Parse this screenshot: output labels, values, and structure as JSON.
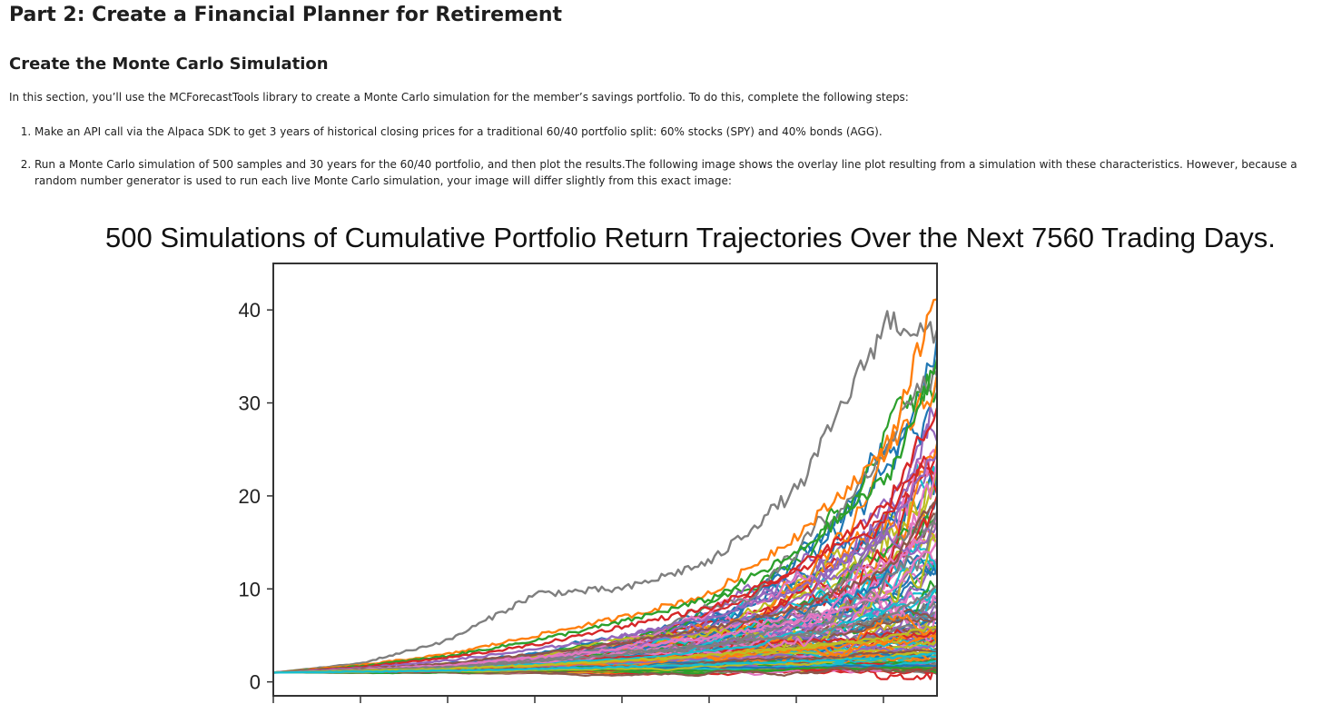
{
  "page": {
    "heading": "Part 2: Create a Financial Planner for Retirement",
    "subheading": "Create the Monte Carlo Simulation",
    "intro": "In this section, you’ll use the MCForecastTools library to create a Monte Carlo simulation for the member’s savings portfolio. To do this, complete the following steps:",
    "steps": [
      "Make an API call via the Alpaca SDK to get 3 years of historical closing prices for a traditional 60/40 portfolio split: 60% stocks (SPY) and 40% bonds (AGG).",
      "Run a Monte Carlo simulation of 500 samples and 30 years for the 60/40 portfolio, and then plot the results.The following image shows the overlay line plot resulting from a simulation with these characteristics. However, because a random number generator is used to run each live Monte Carlo simulation, your image will differ slightly from this exact image:"
    ]
  },
  "colors": {
    "series": [
      "#1f77b4",
      "#ff7f0e",
      "#2ca02c",
      "#d62728",
      "#9467bd",
      "#8c564b",
      "#e377c2",
      "#7f7f7f",
      "#bcbd22",
      "#17becf"
    ]
  },
  "chart_data": {
    "type": "line",
    "title": "500 Simulations of Cumulative Portfolio Return Trajectories Over the Next 7560 Trading Days.",
    "xlabel": "",
    "ylabel": "",
    "x_range": [
      0,
      7560
    ],
    "ylim": [
      -1.5,
      45
    ],
    "y_ticks": [
      "0",
      "10",
      "20",
      "30",
      "40"
    ],
    "grid": false,
    "legend": "none",
    "n_simulations": 500,
    "series": [
      {
        "x": [
          0,
          1000,
          2000,
          3000,
          4000,
          5000,
          6000,
          7000,
          7560
        ],
        "values": [
          1,
          2,
          4.5,
          9.5,
          10,
          13,
          21,
          39,
          37
        ]
      },
      {
        "x": [
          0,
          1000,
          2000,
          3000,
          4000,
          5000,
          6000,
          7000,
          7560
        ],
        "values": [
          1,
          1.8,
          3,
          5,
          7,
          9.5,
          16,
          25,
          42
        ]
      },
      {
        "x": [
          0,
          1000,
          2000,
          3000,
          4000,
          5000,
          6000,
          7000,
          7560
        ],
        "values": [
          1,
          1.7,
          2.8,
          4.5,
          6.5,
          9,
          14,
          22,
          34
        ]
      },
      {
        "x": [
          0,
          1000,
          2000,
          3000,
          4000,
          5000,
          6000,
          7000,
          7560
        ],
        "values": [
          1,
          1.6,
          2.6,
          4,
          6,
          8,
          12,
          19,
          30
        ]
      },
      {
        "x": [
          0,
          1000,
          2000,
          3000,
          4000,
          5000,
          6000,
          7000,
          7560
        ],
        "values": [
          1,
          1.5,
          2.3,
          3.5,
          5,
          7,
          10,
          16,
          25
        ]
      },
      {
        "x": [
          0,
          1000,
          2000,
          3000,
          4000,
          5000,
          6000,
          7000,
          7560
        ],
        "values": [
          1,
          1.4,
          2,
          3,
          4.2,
          5.8,
          8,
          12,
          20
        ]
      },
      {
        "x": [
          0,
          1000,
          2000,
          3000,
          4000,
          5000,
          6000,
          7000,
          7560
        ],
        "values": [
          1,
          1.35,
          1.8,
          2.6,
          3.6,
          4.8,
          6.5,
          9.5,
          15
        ]
      },
      {
        "x": [
          0,
          1000,
          2000,
          3000,
          4000,
          5000,
          6000,
          7000,
          7560
        ],
        "values": [
          1,
          1.3,
          1.6,
          2.2,
          3,
          3.9,
          5,
          7,
          10
        ]
      },
      {
        "x": [
          0,
          1000,
          2000,
          3000,
          4000,
          5000,
          6000,
          7000,
          7560
        ],
        "values": [
          1,
          1.2,
          1.4,
          1.8,
          2.3,
          2.9,
          3.6,
          4.8,
          6
        ]
      },
      {
        "x": [
          0,
          1000,
          2000,
          3000,
          4000,
          5000,
          6000,
          7000,
          7560
        ],
        "values": [
          1,
          1.1,
          1.2,
          1.4,
          1.6,
          1.9,
          2.2,
          2.6,
          3
        ]
      }
    ]
  }
}
